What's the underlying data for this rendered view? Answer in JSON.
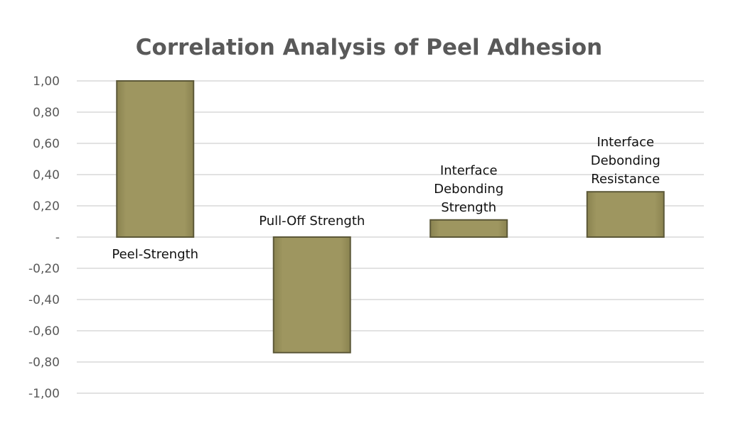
{
  "chart_data": {
    "type": "bar",
    "title": "Correlation Analysis of Peel Adhesion",
    "categories": [
      [
        "Peel-Strength"
      ],
      [
        "Pull-Off Strength"
      ],
      [
        "Interface",
        "Debonding",
        "Strength"
      ],
      [
        "Interface",
        "Debonding",
        "Resistance"
      ]
    ],
    "values": [
      1.0,
      -0.74,
      0.11,
      0.29
    ],
    "ylim": [
      -1.0,
      1.0
    ],
    "yticks": [
      "1,00",
      "0,80",
      "0,60",
      "0,40",
      "0,20",
      "-",
      "-0,20",
      "-0,40",
      "-0,60",
      "-0,80",
      "-1,00"
    ],
    "grid": true,
    "legend": "none",
    "bar_color": "#9e9660",
    "bar_edge_color": "#5c5838"
  }
}
